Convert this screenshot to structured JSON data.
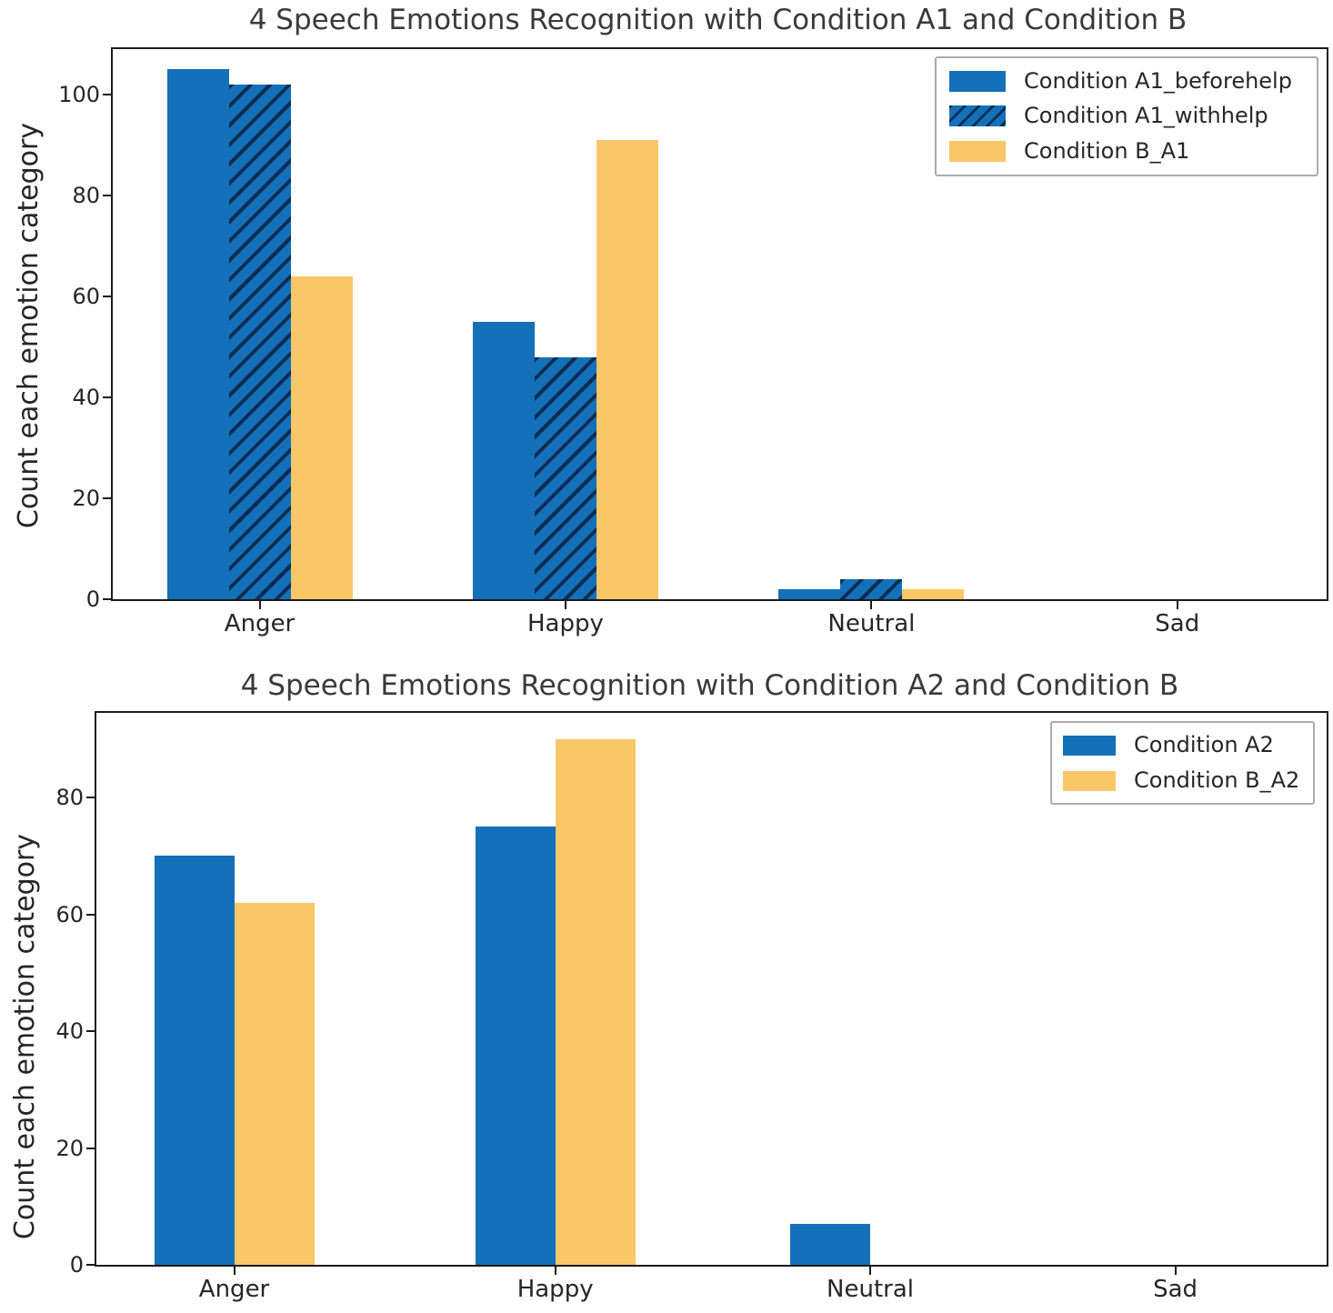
{
  "chart_data": [
    {
      "type": "bar",
      "title": "4 Speech Emotions Recognition with Condition A1 and Condition B",
      "ylabel": "Count each emotion category",
      "categories": [
        "Anger",
        "Happy",
        "Neutral",
        "Sad"
      ],
      "series": [
        {
          "name": "Condition A1_beforehelp",
          "color": "#1470b8",
          "hatch": false,
          "values": [
            105,
            55,
            2,
            0
          ]
        },
        {
          "name": "Condition A1_withhelp",
          "color": "#1470b8",
          "hatch": true,
          "values": [
            102,
            48,
            4,
            0
          ]
        },
        {
          "name": "Condition B_A1",
          "color": "#fac768",
          "hatch": false,
          "values": [
            64,
            91,
            2,
            0
          ]
        }
      ],
      "yticks": [
        0,
        20,
        40,
        60,
        80,
        100
      ],
      "ylim": [
        0,
        109
      ],
      "legend_position": "upper right",
      "grid": false
    },
    {
      "type": "bar",
      "title": "4 Speech Emotions Recognition with Condition A2 and Condition B",
      "ylabel": "Count each emotion category",
      "categories": [
        "Anger",
        "Happy",
        "Neutral",
        "Sad"
      ],
      "series": [
        {
          "name": "Condition A2",
          "color": "#1470b8",
          "hatch": false,
          "values": [
            70,
            75,
            7,
            0
          ]
        },
        {
          "name": "Condition B_A2",
          "color": "#fac768",
          "hatch": false,
          "values": [
            62,
            90,
            0,
            0
          ]
        }
      ],
      "yticks": [
        0,
        20,
        40,
        60,
        80
      ],
      "ylim": [
        0,
        94.5
      ],
      "legend_position": "upper right",
      "grid": false
    }
  ],
  "colors": {
    "bar_blue": "#1470b8",
    "bar_yellow": "#fac768",
    "hatch_line": "#0d2d55",
    "axis": "#1b1b1b"
  }
}
